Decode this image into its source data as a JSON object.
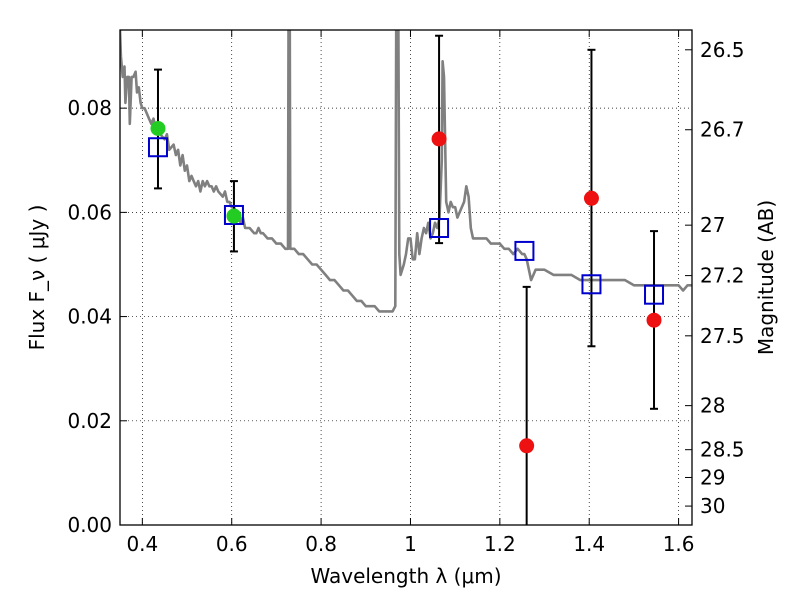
{
  "chart_data": {
    "type": "scatter",
    "xlabel": "Wavelength λ (μm)",
    "ylabel": "Flux F_ν ( μJy )",
    "ylabel_right": "Magnitude (AB)",
    "xlim": [
      0.35,
      1.63
    ],
    "ylim": [
      0.0,
      0.095
    ],
    "grid": true,
    "x_ticks": [
      0.4,
      0.6,
      0.8,
      1.0,
      1.2,
      1.4,
      1.6
    ],
    "x_tick_labels": [
      "0.4",
      "0.6",
      "0.8",
      "1",
      "1.2",
      "1.4",
      "1.6"
    ],
    "y_ticks": [
      0.0,
      0.02,
      0.04,
      0.06,
      0.08
    ],
    "y_tick_labels": [
      "0.00",
      "0.02",
      "0.04",
      "0.06",
      "0.08"
    ],
    "right_ticks": [
      "26.5",
      "26.7",
      "27",
      "27.2",
      "27.5",
      "28",
      "28.5",
      "29",
      "30"
    ],
    "series": [
      {
        "role": "model-spectrum",
        "style": "line",
        "color": "#808080",
        "points": [
          [
            0.35,
            0.095
          ],
          [
            0.352,
            0.09
          ],
          [
            0.356,
            0.086
          ],
          [
            0.36,
            0.088
          ],
          [
            0.362,
            0.081
          ],
          [
            0.366,
            0.086
          ],
          [
            0.37,
            0.086
          ],
          [
            0.372,
            0.077
          ],
          [
            0.376,
            0.086
          ],
          [
            0.38,
            0.086
          ],
          [
            0.385,
            0.087
          ],
          [
            0.388,
            0.083
          ],
          [
            0.392,
            0.084
          ],
          [
            0.396,
            0.081
          ],
          [
            0.4,
            0.08
          ],
          [
            0.405,
            0.08
          ],
          [
            0.41,
            0.079
          ],
          [
            0.415,
            0.078
          ],
          [
            0.42,
            0.077
          ],
          [
            0.425,
            0.078
          ],
          [
            0.43,
            0.076
          ],
          [
            0.435,
            0.077
          ],
          [
            0.44,
            0.075
          ],
          [
            0.45,
            0.074
          ],
          [
            0.455,
            0.075
          ],
          [
            0.46,
            0.072
          ],
          [
            0.47,
            0.073
          ],
          [
            0.475,
            0.071
          ],
          [
            0.48,
            0.072
          ],
          [
            0.485,
            0.069
          ],
          [
            0.49,
            0.071
          ],
          [
            0.495,
            0.068
          ],
          [
            0.5,
            0.069
          ],
          [
            0.505,
            0.066
          ],
          [
            0.51,
            0.067
          ],
          [
            0.515,
            0.066
          ],
          [
            0.52,
            0.065
          ],
          [
            0.525,
            0.066
          ],
          [
            0.53,
            0.064
          ],
          [
            0.535,
            0.066
          ],
          [
            0.54,
            0.065
          ],
          [
            0.545,
            0.066
          ],
          [
            0.55,
            0.065
          ],
          [
            0.555,
            0.065
          ],
          [
            0.56,
            0.064
          ],
          [
            0.565,
            0.065
          ],
          [
            0.57,
            0.064
          ],
          [
            0.58,
            0.063
          ],
          [
            0.585,
            0.064
          ],
          [
            0.59,
            0.062
          ],
          [
            0.595,
            0.062
          ],
          [
            0.6,
            0.061
          ],
          [
            0.605,
            0.061
          ],
          [
            0.61,
            0.06
          ],
          [
            0.615,
            0.059
          ],
          [
            0.62,
            0.058
          ],
          [
            0.625,
            0.059
          ],
          [
            0.63,
            0.057
          ],
          [
            0.635,
            0.057
          ],
          [
            0.64,
            0.057
          ],
          [
            0.65,
            0.056
          ],
          [
            0.655,
            0.056
          ],
          [
            0.66,
            0.057
          ],
          [
            0.665,
            0.056
          ],
          [
            0.67,
            0.056
          ],
          [
            0.68,
            0.055
          ],
          [
            0.69,
            0.055
          ],
          [
            0.7,
            0.054
          ],
          [
            0.71,
            0.054
          ],
          [
            0.72,
            0.053
          ],
          [
            0.726,
            0.053
          ],
          [
            0.727,
            0.095
          ],
          [
            0.73,
            0.095
          ],
          [
            0.731,
            0.053
          ],
          [
            0.74,
            0.053
          ],
          [
            0.75,
            0.052
          ],
          [
            0.76,
            0.052
          ],
          [
            0.77,
            0.051
          ],
          [
            0.78,
            0.05
          ],
          [
            0.79,
            0.05
          ],
          [
            0.8,
            0.049
          ],
          [
            0.81,
            0.048
          ],
          [
            0.82,
            0.047
          ],
          [
            0.83,
            0.047
          ],
          [
            0.84,
            0.046
          ],
          [
            0.85,
            0.045
          ],
          [
            0.86,
            0.045
          ],
          [
            0.87,
            0.044
          ],
          [
            0.88,
            0.043
          ],
          [
            0.89,
            0.043
          ],
          [
            0.9,
            0.042
          ],
          [
            0.91,
            0.042
          ],
          [
            0.92,
            0.042
          ],
          [
            0.93,
            0.041
          ],
          [
            0.94,
            0.041
          ],
          [
            0.95,
            0.041
          ],
          [
            0.96,
            0.041
          ],
          [
            0.966,
            0.042
          ],
          [
            0.968,
            0.095
          ],
          [
            0.973,
            0.095
          ],
          [
            0.975,
            0.052
          ],
          [
            0.978,
            0.048
          ],
          [
            0.985,
            0.05
          ],
          [
            0.99,
            0.052
          ],
          [
            0.995,
            0.055
          ],
          [
            1.0,
            0.055
          ],
          [
            1.005,
            0.051
          ],
          [
            1.01,
            0.051
          ],
          [
            1.015,
            0.056
          ],
          [
            1.02,
            0.052
          ],
          [
            1.025,
            0.055
          ],
          [
            1.03,
            0.057
          ],
          [
            1.035,
            0.056
          ],
          [
            1.04,
            0.058
          ],
          [
            1.045,
            0.055
          ],
          [
            1.05,
            0.056
          ],
          [
            1.055,
            0.058
          ],
          [
            1.06,
            0.057
          ],
          [
            1.065,
            0.059
          ],
          [
            1.07,
            0.07
          ],
          [
            1.072,
            0.089
          ],
          [
            1.075,
            0.086
          ],
          [
            1.08,
            0.062
          ],
          [
            1.085,
            0.06
          ],
          [
            1.09,
            0.062
          ],
          [
            1.095,
            0.061
          ],
          [
            1.1,
            0.061
          ],
          [
            1.105,
            0.059
          ],
          [
            1.11,
            0.06
          ],
          [
            1.12,
            0.062
          ],
          [
            1.125,
            0.065
          ],
          [
            1.13,
            0.063
          ],
          [
            1.135,
            0.057
          ],
          [
            1.14,
            0.055
          ],
          [
            1.15,
            0.055
          ],
          [
            1.16,
            0.055
          ],
          [
            1.17,
            0.055
          ],
          [
            1.18,
            0.054
          ],
          [
            1.19,
            0.054
          ],
          [
            1.2,
            0.054
          ],
          [
            1.21,
            0.053
          ],
          [
            1.22,
            0.053
          ],
          [
            1.23,
            0.052
          ],
          [
            1.24,
            0.053
          ],
          [
            1.25,
            0.052
          ],
          [
            1.255,
            0.052
          ],
          [
            1.26,
            0.051
          ],
          [
            1.265,
            0.049
          ],
          [
            1.27,
            0.047
          ],
          [
            1.275,
            0.048
          ],
          [
            1.28,
            0.049
          ],
          [
            1.29,
            0.049
          ],
          [
            1.3,
            0.049
          ],
          [
            1.32,
            0.048
          ],
          [
            1.34,
            0.048
          ],
          [
            1.36,
            0.048
          ],
          [
            1.38,
            0.047
          ],
          [
            1.4,
            0.047
          ],
          [
            1.42,
            0.047
          ],
          [
            1.44,
            0.047
          ],
          [
            1.46,
            0.047
          ],
          [
            1.48,
            0.047
          ],
          [
            1.5,
            0.046
          ],
          [
            1.52,
            0.046
          ],
          [
            1.54,
            0.046
          ],
          [
            1.56,
            0.046
          ],
          [
            1.58,
            0.046
          ],
          [
            1.6,
            0.046
          ],
          [
            1.61,
            0.045
          ],
          [
            1.62,
            0.046
          ],
          [
            1.63,
            0.046
          ]
        ]
      },
      {
        "role": "model-photometry",
        "style": "open-square",
        "color": "#0000cc",
        "x": [
          0.435,
          0.605,
          1.064,
          1.255,
          1.405,
          1.545
        ],
        "y": [
          0.0725,
          0.0595,
          0.057,
          0.0526,
          0.0462,
          0.0442
        ]
      },
      {
        "role": "observed-green",
        "style": "filled-circle",
        "color": "#22cc22",
        "x": [
          0.435,
          0.605
        ],
        "y": [
          0.0761,
          0.0593
        ],
        "err_low": [
          0.0115,
          0.0068
        ],
        "err_high": [
          0.0113,
          0.0067
        ]
      },
      {
        "role": "observed-red",
        "style": "filled-circle",
        "color": "#ee1111",
        "x": [
          1.064,
          1.26,
          1.405,
          1.545
        ],
        "y": [
          0.0741,
          0.0152,
          0.0627,
          0.0393
        ],
        "err_low": [
          0.02,
          0.0152,
          0.0284,
          0.017
        ],
        "err_high": [
          0.0198,
          0.0305,
          0.0285,
          0.0171
        ]
      }
    ]
  }
}
